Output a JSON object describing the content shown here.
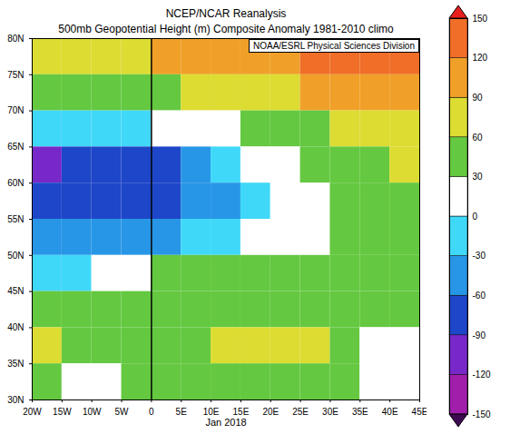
{
  "chart_data": {
    "type": "heatmap",
    "title": "NCEP/NCAR Reanalysis",
    "subtitle": "500mb Geopotential Height (m) Composite Anomaly 1981-2010 climo",
    "source": "NOAA/ESRL Physical Sciences Division",
    "xlabel": "Jan 2018",
    "lon_edges": [
      -20,
      -15,
      -10,
      -5,
      0,
      5,
      10,
      15,
      20,
      25,
      30,
      35,
      40,
      45
    ],
    "lat_edges": [
      80,
      75,
      70,
      65,
      60,
      55,
      50,
      45,
      40,
      35,
      30
    ],
    "values": [
      [
        70,
        75,
        80,
        85,
        95,
        100,
        105,
        110,
        115,
        120,
        125,
        130,
        130
      ],
      [
        35,
        35,
        40,
        45,
        50,
        60,
        70,
        75,
        85,
        95,
        100,
        105,
        105
      ],
      [
        -20,
        -25,
        -20,
        -10,
        5,
        15,
        25,
        35,
        45,
        55,
        65,
        75,
        80
      ],
      [
        -95,
        -85,
        -75,
        -70,
        -65,
        -50,
        -25,
        5,
        25,
        35,
        45,
        55,
        60
      ],
      [
        -90,
        -80,
        -75,
        -70,
        -65,
        -60,
        -40,
        -15,
        5,
        25,
        35,
        40,
        45
      ],
      [
        -45,
        -45,
        -40,
        -40,
        -35,
        -25,
        -10,
        5,
        15,
        25,
        35,
        40,
        40
      ],
      [
        -10,
        -5,
        5,
        20,
        30,
        30,
        30,
        35,
        35,
        35,
        40,
        40,
        45
      ],
      [
        30,
        35,
        40,
        40,
        40,
        45,
        50,
        55,
        55,
        50,
        45,
        40,
        45
      ],
      [
        60,
        50,
        40,
        35,
        45,
        55,
        60,
        65,
        65,
        60,
        50,
        25,
        20
      ],
      [
        45,
        10,
        15,
        35,
        40,
        45,
        50,
        55,
        55,
        45,
        30,
        15,
        10
      ]
    ],
    "xlim": [
      -20,
      45
    ],
    "ylim": [
      30,
      80
    ],
    "xticks": [
      {
        "value": -20,
        "label": "20W"
      },
      {
        "value": -15,
        "label": "15W"
      },
      {
        "value": -10,
        "label": "10W"
      },
      {
        "value": -5,
        "label": "5W"
      },
      0,
      {
        "value": 5,
        "label": "5E"
      },
      {
        "value": 10,
        "label": "10E"
      },
      {
        "value": 15,
        "label": "15E"
      },
      {
        "value": 20,
        "label": "20E"
      },
      {
        "value": 25,
        "label": "25E"
      },
      {
        "value": 30,
        "label": "30E"
      },
      {
        "value": 35,
        "label": "35E"
      },
      {
        "value": 40,
        "label": "40E"
      },
      {
        "value": 45,
        "label": "45E"
      }
    ],
    "yticks": [
      {
        "value": 30,
        "label": "30N"
      },
      {
        "value": 35,
        "label": "35N"
      },
      {
        "value": 40,
        "label": "40N"
      },
      {
        "value": 45,
        "label": "45N"
      },
      {
        "value": 50,
        "label": "50N"
      },
      {
        "value": 55,
        "label": "55N"
      },
      {
        "value": 60,
        "label": "60N"
      },
      {
        "value": 65,
        "label": "65N"
      },
      {
        "value": 70,
        "label": "70N"
      },
      {
        "value": 75,
        "label": "75N"
      },
      {
        "value": 80,
        "label": "80N"
      }
    ],
    "meridian": 0,
    "colorbar": {
      "clim": [
        -150,
        150
      ],
      "ticks": [
        -150,
        -120,
        -90,
        -60,
        -30,
        0,
        30,
        60,
        90,
        120,
        150
      ],
      "colors": [
        "#3c0a50",
        "#a01eaa",
        "#7828c8",
        "#1e46c8",
        "#2896e6",
        "#40d8f8",
        "#ffffff",
        "#64c840",
        "#dcdc32",
        "#f0a028",
        "#f06e28",
        "#e61e1e"
      ]
    }
  }
}
